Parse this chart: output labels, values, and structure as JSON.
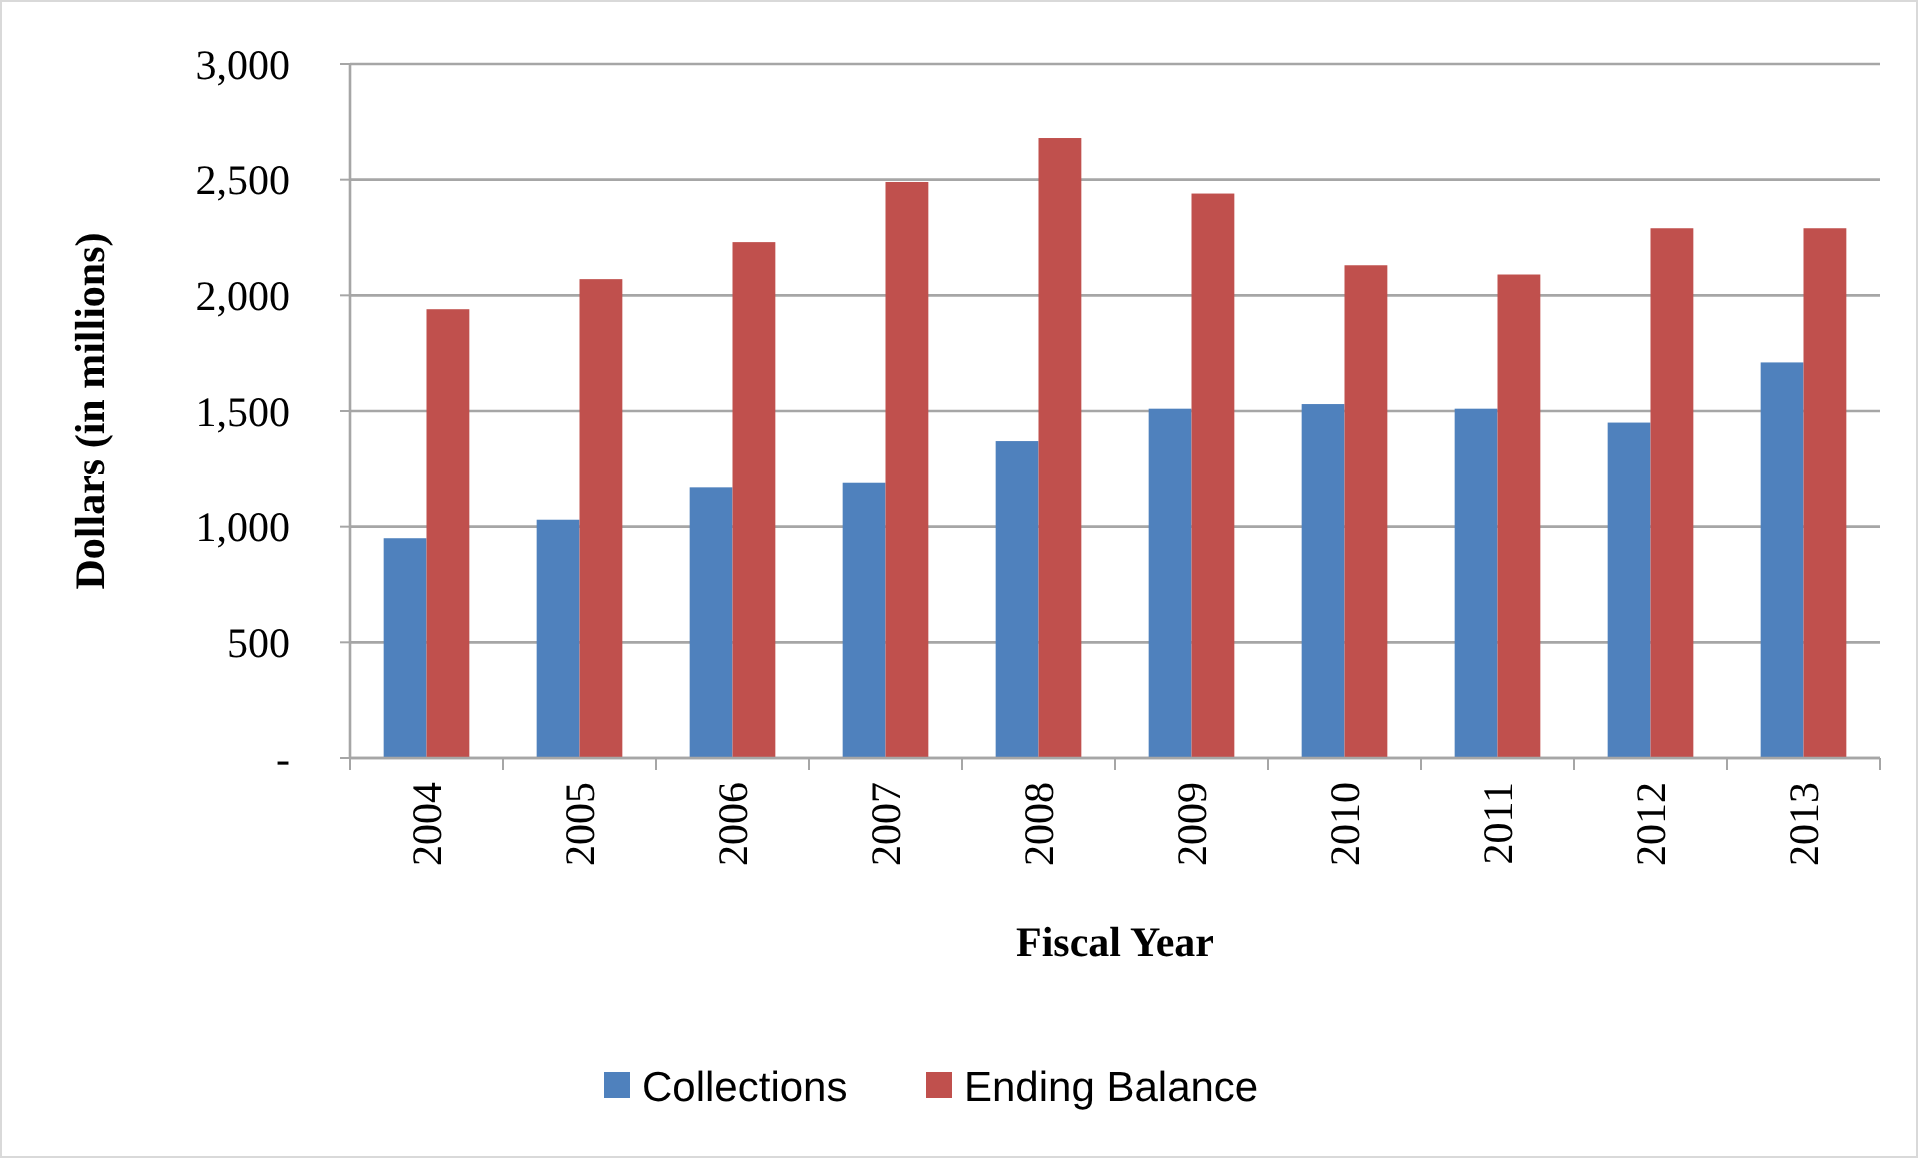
{
  "chart_data": {
    "type": "bar",
    "xlabel": "Fiscal Year",
    "ylabel": "Dollars  (in millions)",
    "categories": [
      "2004",
      "2005",
      "2006",
      "2007",
      "2008",
      "2009",
      "2010",
      "2011",
      "2012",
      "2013"
    ],
    "series": [
      {
        "name": "Collections",
        "color": "#4f81bd",
        "values": [
          950,
          1030,
          1170,
          1190,
          1370,
          1510,
          1530,
          1510,
          1450,
          1710
        ]
      },
      {
        "name": "Ending Balance",
        "color": "#c0504d",
        "values": [
          1940,
          2070,
          2230,
          2490,
          2680,
          2440,
          2130,
          2090,
          2290,
          2290
        ]
      }
    ],
    "ylim": [
      0,
      3000
    ],
    "yticks": [
      {
        "value": 0,
        "label": "-"
      },
      {
        "value": 500,
        "label": "500"
      },
      {
        "value": 1000,
        "label": "1,000"
      },
      {
        "value": 1500,
        "label": "1,500"
      },
      {
        "value": 2000,
        "label": "2,000"
      },
      {
        "value": 2500,
        "label": "2,500"
      },
      {
        "value": 3000,
        "label": "3,000"
      }
    ],
    "grid": "y",
    "legend": "bottom"
  }
}
